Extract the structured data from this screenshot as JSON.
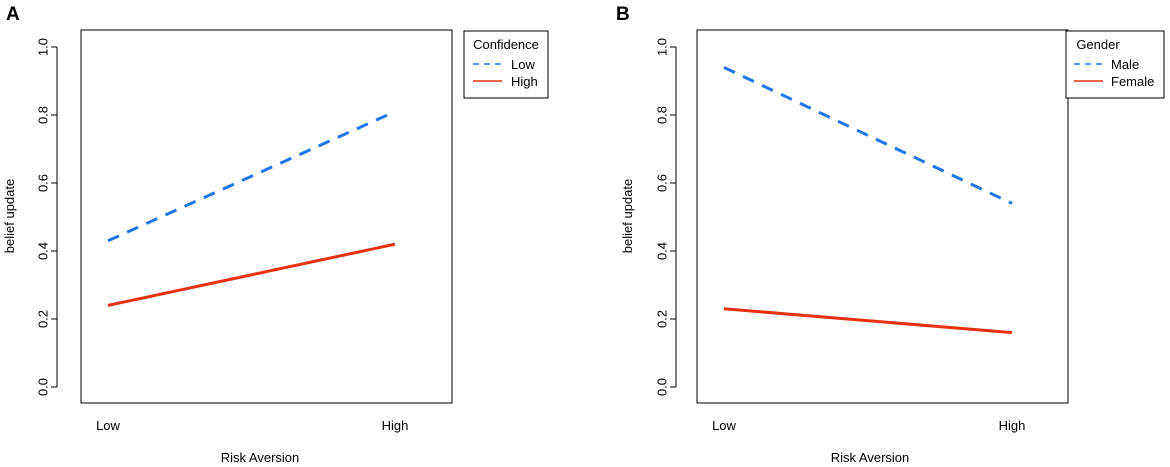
{
  "chart_data": [
    {
      "panel": "A",
      "type": "line",
      "categories": [
        "Low",
        "High"
      ],
      "xlabel": "Risk Aversion",
      "ylabel": "belief update",
      "ylim": [
        0.0,
        1.0
      ],
      "yticks": [
        "0.0",
        "0.2",
        "0.4",
        "0.6",
        "0.8",
        "1.0"
      ],
      "legend": {
        "title": "Confidence",
        "placement": "top-right-outside"
      },
      "series": [
        {
          "name": "Low",
          "values": [
            0.43,
            0.81
          ],
          "color": "#1f77e8",
          "style": "dashed"
        },
        {
          "name": "High",
          "values": [
            0.24,
            0.42
          ],
          "color": "#e8310f",
          "style": "solid"
        }
      ]
    },
    {
      "panel": "B",
      "type": "line",
      "categories": [
        "Low",
        "High"
      ],
      "xlabel": "Risk Aversion",
      "ylabel": "belief update",
      "ylim": [
        0.0,
        1.0
      ],
      "yticks": [
        "0.0",
        "0.2",
        "0.4",
        "0.6",
        "0.8",
        "1.0"
      ],
      "legend": {
        "title": "Gender",
        "placement": "top-right-outside"
      },
      "series": [
        {
          "name": "Male",
          "values": [
            0.94,
            0.54
          ],
          "color": "#1f77e8",
          "style": "dashed"
        },
        {
          "name": "Female",
          "values": [
            0.23,
            0.16
          ],
          "color": "#e8310f",
          "style": "solid"
        }
      ]
    }
  ]
}
